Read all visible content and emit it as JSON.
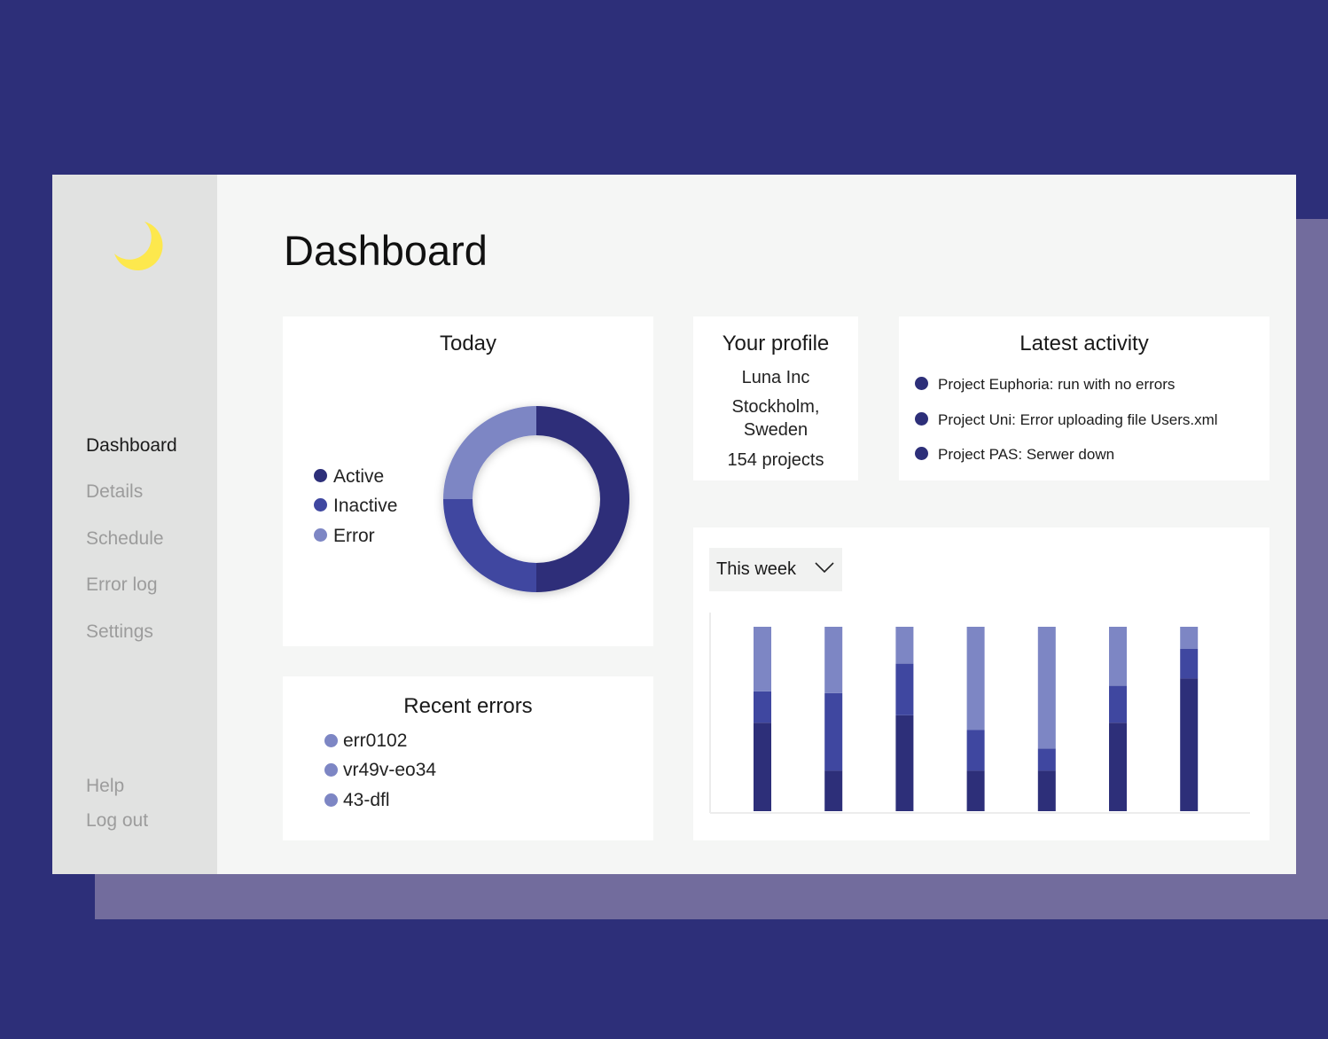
{
  "colors": {
    "background": "#2d2f79",
    "shadow_panel": "#726c9d",
    "window": "#f5f6f5",
    "sidebar": "#e1e2e1",
    "card": "#ffffff",
    "active": "#2d2f79",
    "inactive": "#3f47a0",
    "error": "#7d86c4",
    "moon": "#fde84d"
  },
  "logo": {
    "icon": "moon-icon"
  },
  "page": {
    "title": "Dashboard"
  },
  "sidebar": {
    "items": [
      {
        "label": "Dashboard",
        "active": true
      },
      {
        "label": "Details",
        "active": false
      },
      {
        "label": "Schedule",
        "active": false
      },
      {
        "label": "Error log",
        "active": false
      },
      {
        "label": "Settings",
        "active": false
      }
    ],
    "footer": [
      {
        "label": "Help"
      },
      {
        "label": "Log out"
      }
    ]
  },
  "today": {
    "title": "Today",
    "legend": [
      {
        "label": "Active",
        "color": "#2d2f79"
      },
      {
        "label": "Inactive",
        "color": "#3f47a0"
      },
      {
        "label": "Error",
        "color": "#7d86c4"
      }
    ]
  },
  "profile": {
    "title": "Your profile",
    "company": "Luna Inc",
    "location_line1": "Stockholm,",
    "location_line2": "Sweden",
    "projects": "154 projects"
  },
  "activity": {
    "title": "Latest activity",
    "items": [
      "Project Euphoria: run with no errors",
      "Project Uni: Error uploading file Users.xml",
      "Project PAS: Serwer down"
    ]
  },
  "errors": {
    "title": "Recent errors",
    "items": [
      "err0102",
      "vr49v-eo34",
      "43-dfl"
    ]
  },
  "weekly": {
    "dropdown": {
      "selected": "This week",
      "icon": "chevron-down-icon"
    }
  },
  "chart_data": [
    {
      "type": "pie",
      "style": "donut",
      "labels": [
        "Active",
        "Inactive",
        "Error"
      ],
      "values": [
        50,
        25,
        25
      ],
      "colors": [
        "#2d2f79",
        "#3f47a0",
        "#7d86c4"
      ],
      "legend": "left"
    },
    {
      "type": "bar",
      "stacked": true,
      "categories": [
        "",
        "",
        "",
        "",
        "",
        "",
        ""
      ],
      "series": [
        {
          "values": [
            48,
            22,
            52,
            22,
            22,
            48,
            72
          ],
          "color": "#2d2f79"
        },
        {
          "values": [
            17,
            42,
            28,
            22,
            12,
            20,
            16
          ],
          "color": "#3f47a0"
        },
        {
          "values": [
            35,
            36,
            20,
            56,
            66,
            32,
            12
          ],
          "color": "#7d86c4"
        }
      ],
      "ylim": [
        0,
        100
      ],
      "grid": false,
      "axis_labels": false
    }
  ]
}
